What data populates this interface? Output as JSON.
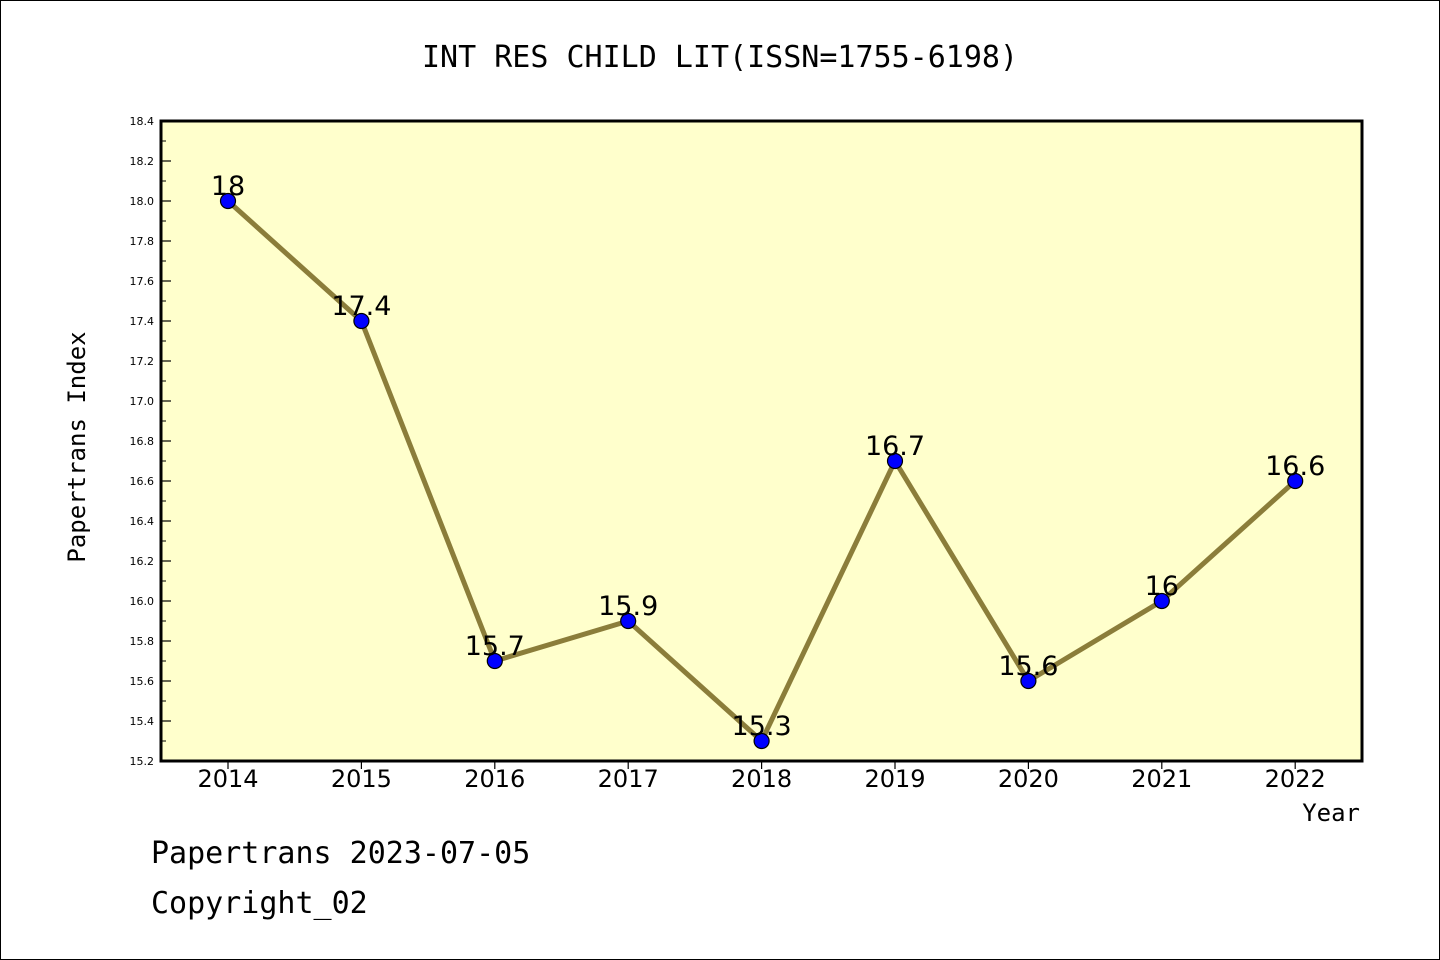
{
  "chart_data": {
    "type": "line",
    "title": "INT RES CHILD LIT(ISSN=1755-6198)",
    "xlabel": "Year",
    "ylabel": "Papertrans Index",
    "categories": [
      "2014",
      "2015",
      "2016",
      "2017",
      "2018",
      "2019",
      "2020",
      "2021",
      "2022"
    ],
    "series": [
      {
        "values": [
          18,
          17.4,
          15.7,
          15.9,
          15.3,
          16.7,
          15.6,
          16,
          16.6
        ],
        "labels": [
          "18",
          "17.4",
          "15.7",
          "15.9",
          "15.3",
          "16.7",
          "15.6",
          "16",
          "16.6"
        ]
      }
    ],
    "ylim": [
      15.2,
      18.4
    ],
    "yticks": [
      "15.2",
      "15.4",
      "15.6",
      "15.8",
      "16.0",
      "16.2",
      "16.4",
      "16.6",
      "16.8",
      "17.0",
      "17.2",
      "17.4",
      "17.6",
      "17.8",
      "18.0",
      "18.2",
      "18.4"
    ],
    "grid": false,
    "legend": "none",
    "colors": {
      "plot_background": "#ffffcc",
      "line": "#8b7d3a",
      "marker": "#0000ff"
    }
  },
  "footer": {
    "line1": "Papertrans 2023-07-05",
    "line2": "Copyright_02"
  }
}
